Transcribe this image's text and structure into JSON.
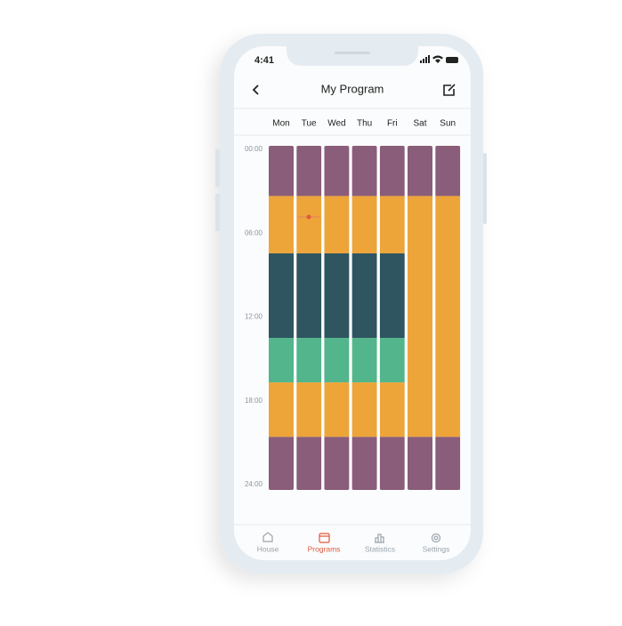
{
  "status_bar": {
    "time": "4:41"
  },
  "header": {
    "title": "My Program"
  },
  "days": [
    "Mon",
    "Tue",
    "Wed",
    "Thu",
    "Fri",
    "Sat",
    "Sun"
  ],
  "time_labels": [
    {
      "value": 0,
      "label": "00:00"
    },
    {
      "value": 6,
      "label": "06:00"
    },
    {
      "value": 12,
      "label": "12:00"
    },
    {
      "value": 18,
      "label": "18:00"
    },
    {
      "value": 24,
      "label": "24:00"
    }
  ],
  "schedule": [
    {
      "segments": [
        {
          "start": 0,
          "end": 3.5,
          "color": "#8a5d7a"
        },
        {
          "start": 3.5,
          "end": 7.5,
          "color": "#eda53a"
        },
        {
          "start": 7.5,
          "end": 13.4,
          "color": "#2e5560"
        },
        {
          "start": 13.4,
          "end": 16.5,
          "color": "#52b58c"
        },
        {
          "start": 16.5,
          "end": 20.3,
          "color": "#eda53a"
        },
        {
          "start": 20.3,
          "end": 24,
          "color": "#8a5d7a"
        }
      ]
    },
    {
      "segments": [
        {
          "start": 0,
          "end": 3.5,
          "color": "#8a5d7a"
        },
        {
          "start": 3.5,
          "end": 7.5,
          "color": "#eda53a"
        },
        {
          "start": 7.5,
          "end": 13.4,
          "color": "#2e5560"
        },
        {
          "start": 13.4,
          "end": 16.5,
          "color": "#52b58c"
        },
        {
          "start": 16.5,
          "end": 20.3,
          "color": "#eda53a"
        },
        {
          "start": 20.3,
          "end": 24,
          "color": "#8a5d7a"
        }
      ]
    },
    {
      "segments": [
        {
          "start": 0,
          "end": 3.5,
          "color": "#8a5d7a"
        },
        {
          "start": 3.5,
          "end": 7.5,
          "color": "#eda53a"
        },
        {
          "start": 7.5,
          "end": 13.4,
          "color": "#2e5560"
        },
        {
          "start": 13.4,
          "end": 16.5,
          "color": "#52b58c"
        },
        {
          "start": 16.5,
          "end": 20.3,
          "color": "#eda53a"
        },
        {
          "start": 20.3,
          "end": 24,
          "color": "#8a5d7a"
        }
      ]
    },
    {
      "segments": [
        {
          "start": 0,
          "end": 3.5,
          "color": "#8a5d7a"
        },
        {
          "start": 3.5,
          "end": 7.5,
          "color": "#eda53a"
        },
        {
          "start": 7.5,
          "end": 13.4,
          "color": "#2e5560"
        },
        {
          "start": 13.4,
          "end": 16.5,
          "color": "#52b58c"
        },
        {
          "start": 16.5,
          "end": 20.3,
          "color": "#eda53a"
        },
        {
          "start": 20.3,
          "end": 24,
          "color": "#8a5d7a"
        }
      ]
    },
    {
      "segments": [
        {
          "start": 0,
          "end": 3.5,
          "color": "#8a5d7a"
        },
        {
          "start": 3.5,
          "end": 7.5,
          "color": "#eda53a"
        },
        {
          "start": 7.5,
          "end": 13.4,
          "color": "#2e5560"
        },
        {
          "start": 13.4,
          "end": 16.5,
          "color": "#52b58c"
        },
        {
          "start": 16.5,
          "end": 20.3,
          "color": "#eda53a"
        },
        {
          "start": 20.3,
          "end": 24,
          "color": "#8a5d7a"
        }
      ]
    },
    {
      "segments": [
        {
          "start": 0,
          "end": 3.5,
          "color": "#8a5d7a"
        },
        {
          "start": 3.5,
          "end": 20.3,
          "color": "#eda53a"
        },
        {
          "start": 20.3,
          "end": 24,
          "color": "#8a5d7a"
        }
      ]
    },
    {
      "segments": [
        {
          "start": 0,
          "end": 3.5,
          "color": "#8a5d7a"
        },
        {
          "start": 3.5,
          "end": 20.3,
          "color": "#eda53a"
        },
        {
          "start": 20.3,
          "end": 24,
          "color": "#8a5d7a"
        }
      ]
    }
  ],
  "tabs": [
    "House",
    "Programs",
    "Statistics",
    "Settings"
  ],
  "active_tab": 1,
  "active_color": "#e05a3a"
}
